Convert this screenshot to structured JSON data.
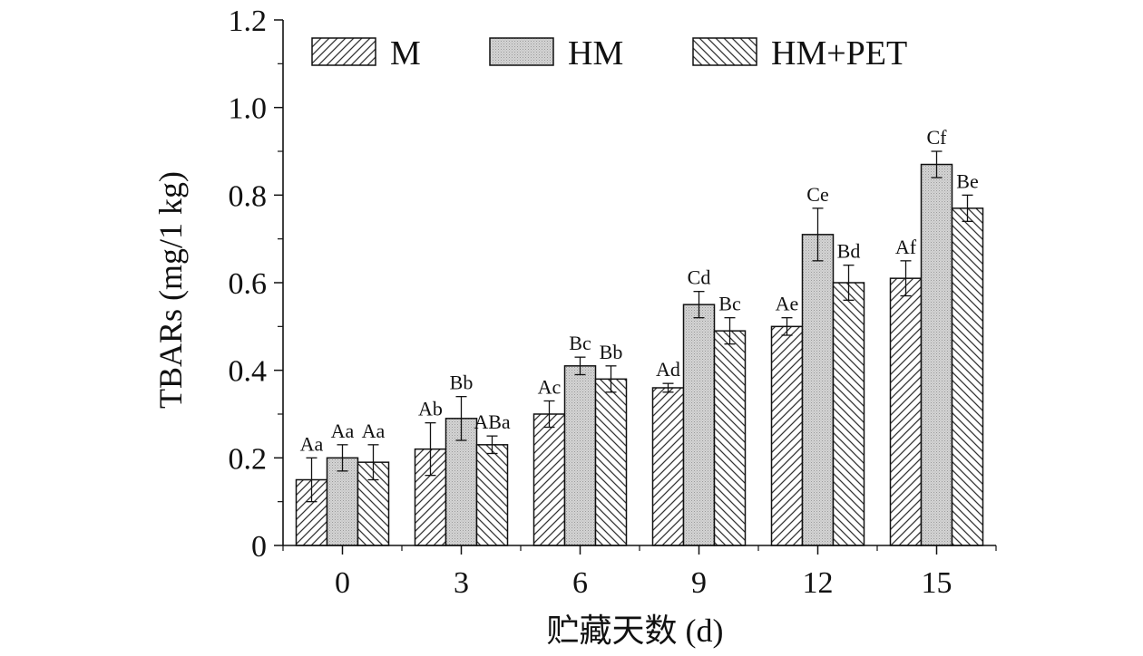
{
  "chart_data": {
    "type": "bar",
    "categories": [
      "0",
      "3",
      "6",
      "9",
      "12",
      "15"
    ],
    "xlabel": "贮藏天数 (d)",
    "ylabel": "TBARs (mg/1 kg)",
    "ylim": [
      0,
      1.2
    ],
    "yticks": [
      "0",
      "0.2",
      "0.4",
      "0.6",
      "0.8",
      "1.0",
      "1.2"
    ],
    "legend_position": "top",
    "series": [
      {
        "name": "M",
        "pattern": "diagonal-forward",
        "values": [
          0.15,
          0.22,
          0.3,
          0.36,
          0.5,
          0.61
        ],
        "errors": [
          0.05,
          0.06,
          0.03,
          0.01,
          0.02,
          0.04
        ],
        "labels": [
          "Aa",
          "Ab",
          "Ac",
          "Ad",
          "Ae",
          "Af"
        ]
      },
      {
        "name": "HM",
        "pattern": "dotted-gray",
        "values": [
          0.2,
          0.29,
          0.41,
          0.55,
          0.71,
          0.87
        ],
        "errors": [
          0.03,
          0.05,
          0.02,
          0.03,
          0.06,
          0.03
        ],
        "labels": [
          "Aa",
          "Bb",
          "Bc",
          "Cd",
          "Ce",
          "Cf"
        ]
      },
      {
        "name": "HM+PET",
        "pattern": "diagonal-backward",
        "values": [
          0.19,
          0.23,
          0.38,
          0.49,
          0.6,
          0.77
        ],
        "errors": [
          0.04,
          0.02,
          0.03,
          0.03,
          0.04,
          0.03
        ],
        "labels": [
          "Aa",
          "ABa",
          "Bb",
          "Bc",
          "Bd",
          "Be"
        ]
      }
    ]
  }
}
